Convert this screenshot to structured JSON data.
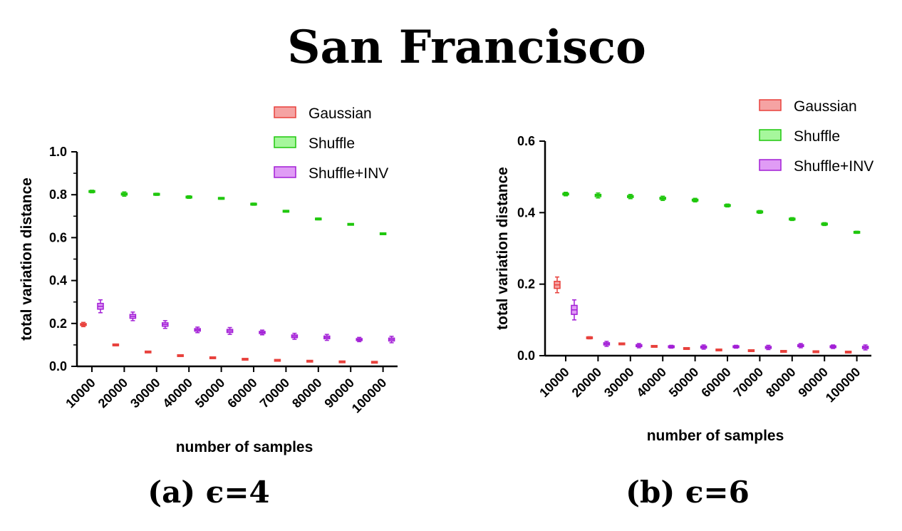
{
  "title": "San Francisco",
  "colors": {
    "Gaussian": {
      "fill": "#f5a3a3",
      "stroke": "#e8413c"
    },
    "Shuffle": {
      "fill": "#a6f79c",
      "stroke": "#1fc70d"
    },
    "Shuffle+INV": {
      "fill": "#e09cf5",
      "stroke": "#a21fd6"
    }
  },
  "chart_data": [
    {
      "type": "box",
      "caption": "(a) ϵ=4",
      "xlabel": "number of samples",
      "ylabel": "total variation distance",
      "categories": [
        "10000",
        "20000",
        "30000",
        "40000",
        "50000",
        "60000",
        "70000",
        "80000",
        "90000",
        "100000"
      ],
      "ylim": [
        0,
        1.0
      ],
      "yticks": [
        "0.0",
        "0.2",
        "0.4",
        "0.6",
        "0.8",
        "1.0"
      ],
      "legend": [
        "Gaussian",
        "Shuffle",
        "Shuffle+INV"
      ],
      "legend_position": "top-right",
      "series": [
        {
          "name": "Gaussian",
          "values": [
            0.195,
            0.1,
            0.067,
            0.05,
            0.04,
            0.033,
            0.028,
            0.024,
            0.021,
            0.019
          ],
          "spread": [
            0.01,
            0.004,
            0.003,
            0.003,
            0.002,
            0.002,
            0.002,
            0.002,
            0.002,
            0.002
          ]
        },
        {
          "name": "Shuffle",
          "values": [
            0.815,
            0.803,
            0.802,
            0.789,
            0.783,
            0.756,
            0.723,
            0.687,
            0.662,
            0.618
          ],
          "spread": [
            0.006,
            0.01,
            0.005,
            0.006,
            0.004,
            0.005,
            0.004,
            0.004,
            0.003,
            0.004
          ]
        },
        {
          "name": "Shuffle+INV",
          "values": [
            0.28,
            0.233,
            0.195,
            0.17,
            0.165,
            0.158,
            0.14,
            0.135,
            0.125,
            0.125
          ],
          "spread": [
            0.03,
            0.02,
            0.018,
            0.013,
            0.016,
            0.011,
            0.014,
            0.014,
            0.01,
            0.015
          ]
        }
      ]
    },
    {
      "type": "box",
      "caption": "(b) ϵ=6",
      "xlabel": "number of samples",
      "ylabel": "total variation distance",
      "categories": [
        "10000",
        "20000",
        "30000",
        "40000",
        "50000",
        "60000",
        "70000",
        "80000",
        "90000",
        "100000"
      ],
      "ylim": [
        0,
        0.6
      ],
      "yticks": [
        "0.0",
        "0.2",
        "0.4",
        "0.6"
      ],
      "legend": [
        "Gaussian",
        "Shuffle",
        "Shuffle+INV"
      ],
      "legend_position": "top-right",
      "series": [
        {
          "name": "Gaussian",
          "values": [
            0.198,
            0.05,
            0.033,
            0.026,
            0.02,
            0.016,
            0.014,
            0.012,
            0.011,
            0.01
          ],
          "spread": [
            0.022,
            0.003,
            0.002,
            0.002,
            0.002,
            0.002,
            0.002,
            0.002,
            0.002,
            0.002
          ]
        },
        {
          "name": "Shuffle",
          "values": [
            0.452,
            0.448,
            0.445,
            0.44,
            0.435,
            0.42,
            0.402,
            0.382,
            0.368,
            0.345
          ],
          "spread": [
            0.005,
            0.007,
            0.006,
            0.006,
            0.005,
            0.004,
            0.004,
            0.004,
            0.004,
            0.003
          ]
        },
        {
          "name": "Shuffle+INV",
          "values": [
            0.128,
            0.033,
            0.028,
            0.025,
            0.024,
            0.025,
            0.023,
            0.028,
            0.025,
            0.023
          ],
          "spread": [
            0.028,
            0.007,
            0.006,
            0.004,
            0.006,
            0.004,
            0.006,
            0.006,
            0.005,
            0.007
          ]
        }
      ]
    }
  ]
}
